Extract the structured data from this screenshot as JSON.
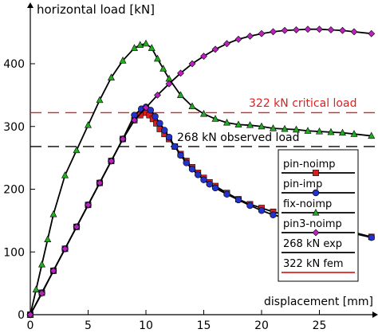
{
  "chart_data": {
    "type": "line",
    "ylabel": "horizontal load [kN]",
    "xlabel": "displacement [mm]",
    "xlim": [
      0,
      30
    ],
    "ylim": [
      0,
      480
    ],
    "x_ticks": [
      0,
      5,
      10,
      15,
      20,
      25
    ],
    "y_ticks": [
      0,
      100,
      200,
      300,
      400
    ],
    "grid": false,
    "legend_position": "right",
    "series": [
      {
        "name": "pin-noimp",
        "color": "#d62020",
        "marker": "square",
        "x": [
          0,
          1,
          2,
          3,
          4,
          5,
          6,
          7,
          8,
          9,
          9.5,
          10,
          10.3,
          10.6,
          10.9,
          11.2,
          11.6,
          12,
          12.5,
          13,
          13.5,
          14,
          14.5,
          15,
          15.5,
          16,
          17,
          18,
          19,
          20,
          21,
          29.5
        ],
        "y": [
          0,
          35,
          70,
          105,
          140,
          175,
          210,
          245,
          280,
          310,
          318,
          322,
          318,
          312,
          305,
          296,
          288,
          280,
          268,
          256,
          245,
          235,
          226,
          218,
          211,
          205,
          194,
          184,
          176,
          170,
          164,
          124
        ]
      },
      {
        "name": "pin-imp",
        "color": "#2233cc",
        "marker": "circle",
        "x": [
          0,
          1,
          2,
          3,
          4,
          5,
          6,
          7,
          8,
          9,
          9.6,
          10,
          10.4,
          10.8,
          11.2,
          11.6,
          12,
          12.5,
          13,
          13.5,
          14,
          14.5,
          15,
          15.5,
          16,
          17,
          18,
          19,
          20,
          21,
          29.5
        ],
        "y": [
          0,
          35,
          70,
          105,
          140,
          175,
          210,
          245,
          280,
          318,
          328,
          331,
          326,
          316,
          305,
          294,
          283,
          268,
          254,
          242,
          232,
          223,
          215,
          208,
          202,
          192,
          183,
          174,
          166,
          159,
          123
        ]
      },
      {
        "name": "fix-noimp",
        "color": "#22aa22",
        "marker": "triangle",
        "x": [
          0,
          0.5,
          1,
          1.5,
          2,
          3,
          4,
          5,
          6,
          7,
          8,
          9,
          9.5,
          10,
          10.5,
          11,
          11.5,
          12,
          13,
          14,
          15,
          16,
          17,
          18,
          19,
          20,
          21,
          22,
          23,
          24,
          25,
          26,
          27,
          28,
          29.5
        ],
        "y": [
          0,
          40,
          80,
          120,
          160,
          222,
          262,
          302,
          342,
          378,
          405,
          425,
          430,
          432,
          425,
          408,
          392,
          376,
          350,
          332,
          320,
          312,
          306,
          303,
          302,
          300,
          297,
          296,
          295,
          293,
          292,
          291,
          290,
          288,
          285
        ]
      },
      {
        "name": "pin3-noimp",
        "color": "#bb22bb",
        "marker": "diamond",
        "x": [
          0,
          1,
          2,
          3,
          4,
          5,
          6,
          7,
          8,
          9,
          10,
          11,
          12,
          13,
          14,
          15,
          16,
          17,
          18,
          19,
          20,
          21,
          22,
          23,
          24,
          25,
          26,
          27,
          28,
          29.5
        ],
        "y": [
          0,
          34,
          70,
          105,
          140,
          175,
          210,
          245,
          280,
          310,
          330,
          350,
          368,
          385,
          400,
          412,
          423,
          432,
          439,
          444,
          448,
          451,
          453,
          454,
          455,
          455,
          454,
          453,
          451,
          448
        ]
      }
    ],
    "reference_lines": [
      {
        "y": 268,
        "color": "#000000",
        "style": "dashed",
        "label": "268 kN observed load",
        "legend": "268 kN exp"
      },
      {
        "y": 322,
        "color": "#e02020",
        "style": "dashed",
        "label": "322 kN critical load",
        "legend": "322 kN fem"
      }
    ]
  }
}
